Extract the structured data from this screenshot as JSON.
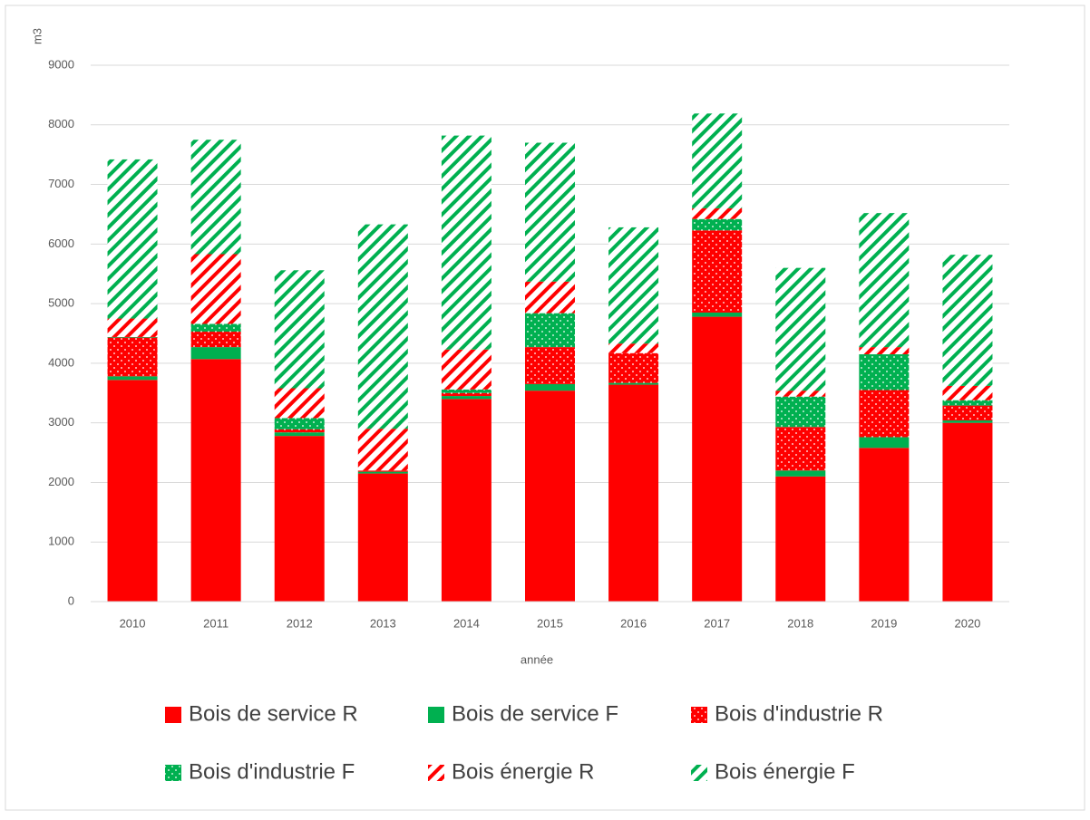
{
  "chart_data": {
    "type": "stacked_bar",
    "y_axis_label": "m3",
    "x_axis_label": "année",
    "categories": [
      "2010",
      "2011",
      "2012",
      "2013",
      "2014",
      "2015",
      "2016",
      "2017",
      "2018",
      "2019",
      "2020"
    ],
    "series": [
      {
        "name": "Bois de service R",
        "color": "#ff0000",
        "pattern": "solid",
        "values": [
          3720,
          4070,
          2780,
          2150,
          3400,
          3540,
          3640,
          4780,
          2100,
          2580,
          3000
        ]
      },
      {
        "name": "Bois de service F",
        "color": "#00b050",
        "pattern": "solid",
        "values": [
          60,
          200,
          60,
          30,
          50,
          110,
          30,
          70,
          100,
          180,
          40
        ]
      },
      {
        "name": "Bois d'industrie R",
        "color": "#ff0000",
        "pattern": "dots",
        "values": [
          650,
          260,
          50,
          20,
          50,
          620,
          500,
          1380,
          730,
          790,
          250
        ]
      },
      {
        "name": "Bois d'industrie F",
        "color": "#00b050",
        "pattern": "dots",
        "values": [
          10,
          130,
          190,
          0,
          60,
          570,
          0,
          190,
          510,
          600,
          90
        ]
      },
      {
        "name": "Bois énergie R",
        "color": "#ff0000",
        "pattern": "stripes",
        "values": [
          310,
          1170,
          500,
          700,
          670,
          530,
          160,
          180,
          100,
          120,
          240
        ]
      },
      {
        "name": "Bois énergie F",
        "color": "#00b050",
        "pattern": "stripes",
        "values": [
          2670,
          1920,
          1980,
          3430,
          3590,
          2330,
          1950,
          1590,
          2060,
          2250,
          2200
        ]
      }
    ],
    "ylim": [
      0,
      9000
    ],
    "yticks": [
      0,
      1000,
      2000,
      3000,
      4000,
      5000,
      6000,
      7000,
      8000,
      9000
    ],
    "grid": true,
    "legend": "bottom"
  }
}
